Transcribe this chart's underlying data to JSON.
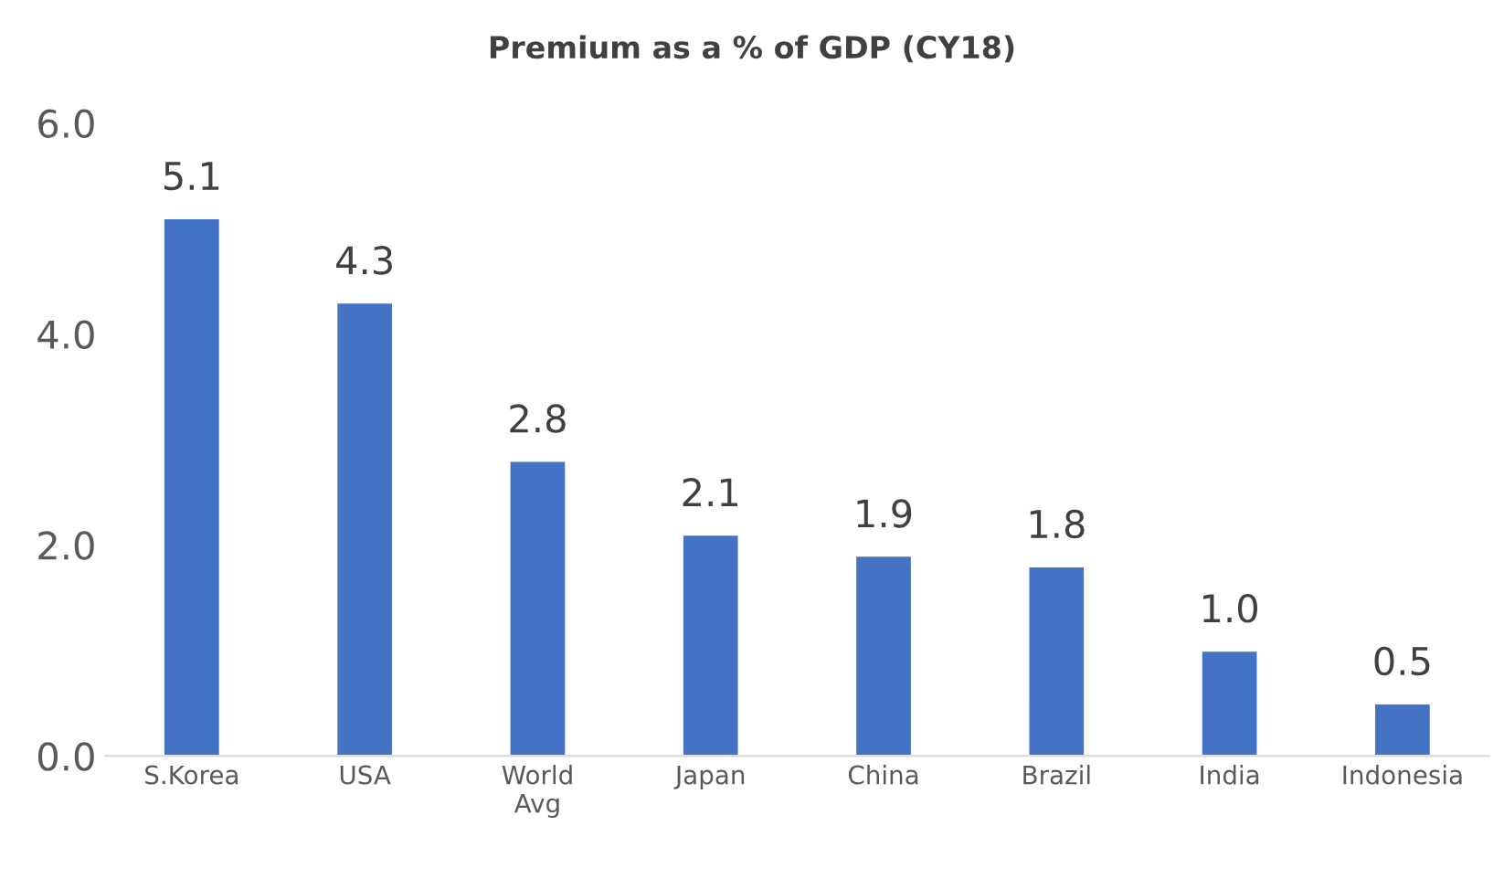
{
  "chart_data": {
    "type": "bar",
    "title": "Premium as a % of GDP (CY18)",
    "categories": [
      "S.Korea",
      "USA",
      "World\nAvg",
      "Japan",
      "China",
      "Brazil",
      "India",
      "Indonesia"
    ],
    "values": [
      5.1,
      4.3,
      2.8,
      2.1,
      1.9,
      1.8,
      1.0,
      0.5
    ],
    "color": "#4472c4",
    "ylim": [
      0,
      6
    ],
    "yticks": [
      {
        "value": 0,
        "label": "0.0"
      },
      {
        "value": 2,
        "label": "2.0"
      },
      {
        "value": 4,
        "label": "4.0"
      },
      {
        "value": 6,
        "label": "6.0"
      }
    ],
    "value_labels": [
      "5.1",
      "4.3",
      "2.8",
      "2.1",
      "1.9",
      "1.8",
      "1.0",
      "0.5"
    ],
    "grid": false,
    "legend": false
  }
}
